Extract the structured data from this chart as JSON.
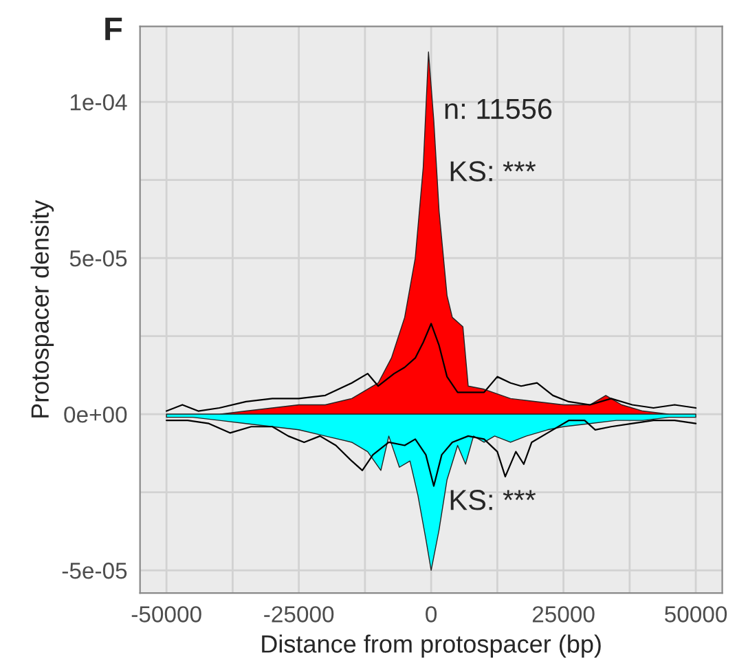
{
  "chart_data": {
    "type": "area",
    "title": "F",
    "xlabel": "Distance from protospacer (bp)",
    "ylabel": "Protospacer density",
    "annotations": [
      "n: 11556",
      "KS: ***",
      "KS: ***"
    ],
    "xlim": [
      -55000,
      55000
    ],
    "ylim": [
      -5.73e-05,
      0.0001242
    ],
    "xticks": [
      -50000,
      -25000,
      0,
      25000,
      50000
    ],
    "yticks": [
      {
        "value": -5e-05,
        "label": "-5e-05"
      },
      {
        "value": 0,
        "label": "0e+00"
      },
      {
        "value": 5e-05,
        "label": "5e-05"
      },
      {
        "value": 0.0001,
        "label": "1e-04"
      }
    ],
    "grid": true,
    "legend": false,
    "series": [
      {
        "color": "#ff0000",
        "x": [
          -50000,
          -45000,
          -40000,
          -35000,
          -30000,
          -25000,
          -20000,
          -15000,
          -10000,
          -7500,
          -5000,
          -3000,
          -1500,
          -500,
          500,
          1500,
          3000,
          4000,
          6000,
          7000,
          10000,
          15000,
          20000,
          25000,
          30000,
          33000,
          36000,
          40000,
          45000,
          50000
        ],
        "values": [
          0,
          0,
          0,
          1e-06,
          2e-06,
          3e-06,
          3e-06,
          5e-06,
          1e-05,
          1.8e-05,
          3.1e-05,
          5e-05,
          7.9e-05,
          0.000116,
          9.4e-05,
          6.5e-05,
          3.8e-05,
          3.1e-05,
          2.8e-05,
          9e-06,
          8e-06,
          5e-06,
          4e-06,
          3e-06,
          3e-06,
          6e-06,
          3e-06,
          1e-06,
          0,
          0
        ]
      },
      {
        "type": "line",
        "color": "#000000",
        "x": [
          -50000,
          -47000,
          -44000,
          -40000,
          -35000,
          -30000,
          -25000,
          -20000,
          -15000,
          -12000,
          -10000,
          -7000,
          -5000,
          -3000,
          -1500,
          0,
          1500,
          3000,
          5000,
          7500,
          10000,
          12500,
          15000,
          17000,
          20000,
          23000,
          26000,
          30000,
          34000,
          38000,
          42000,
          46000,
          50000
        ],
        "values": [
          1e-06,
          3e-06,
          1e-06,
          2e-06,
          4e-06,
          5e-06,
          5e-06,
          6e-06,
          1e-05,
          1.3e-05,
          9e-06,
          1.3e-05,
          1.5e-05,
          1.8e-05,
          2.3e-05,
          2.9e-05,
          2.2e-05,
          1.2e-05,
          7e-06,
          7e-06,
          7e-06,
          1.2e-05,
          1e-05,
          9e-06,
          1e-05,
          6e-06,
          4e-06,
          3e-06,
          5e-06,
          3e-06,
          2e-06,
          3e-06,
          2e-06
        ]
      },
      {
        "color": "#00ffff",
        "x": [
          -50000,
          -45000,
          -40000,
          -35000,
          -30000,
          -25000,
          -20000,
          -15000,
          -12000,
          -9500,
          -8000,
          -6000,
          -4000,
          -2500,
          -1000,
          0,
          1500,
          3000,
          5000,
          6500,
          8000,
          10000,
          12000,
          15000,
          18000,
          22000,
          25000,
          30000,
          35000,
          40000,
          45000,
          50000
        ],
        "values": [
          -1e-06,
          -1e-06,
          -2e-06,
          -3e-06,
          -4e-06,
          -5e-06,
          -7e-06,
          -9e-06,
          -1.2e-05,
          -1.8e-05,
          -7e-06,
          -1.7e-05,
          -1.5e-05,
          -2.6e-05,
          -4e-05,
          -5e-05,
          -3.7e-05,
          -2.1e-05,
          -1e-05,
          -1.6e-05,
          -7e-06,
          -9e-06,
          -7e-06,
          -9e-06,
          -7e-06,
          -5e-06,
          -4e-06,
          -3e-06,
          -2e-06,
          -2e-06,
          -1e-06,
          -1e-06
        ]
      },
      {
        "type": "line",
        "color": "#000000",
        "x": [
          -50000,
          -46000,
          -42000,
          -38000,
          -34000,
          -30000,
          -27000,
          -24000,
          -21000,
          -18000,
          -15000,
          -13000,
          -11000,
          -8000,
          -5000,
          -3000,
          -1000,
          500,
          2000,
          4000,
          7000,
          10000,
          12500,
          14000,
          16000,
          17500,
          19000,
          22000,
          26000,
          29000,
          31000,
          34000,
          38000,
          42000,
          46000,
          50000
        ],
        "values": [
          -2e-06,
          -2e-06,
          -3e-06,
          -6e-06,
          -4e-06,
          -4e-06,
          -7e-06,
          -9e-06,
          -7e-06,
          -1e-05,
          -1.5e-05,
          -1.8e-05,
          -1.3e-05,
          -9e-06,
          -1e-05,
          -8e-06,
          -1.3e-05,
          -2.3e-05,
          -1.3e-05,
          -9e-06,
          -7e-06,
          -8e-06,
          -1.2e-05,
          -2e-05,
          -1.2e-05,
          -1.6e-05,
          -9e-06,
          -6e-06,
          -2e-06,
          -2e-06,
          -5e-06,
          -4e-06,
          -3e-06,
          -2e-06,
          -2e-06,
          -3e-06
        ]
      }
    ]
  }
}
